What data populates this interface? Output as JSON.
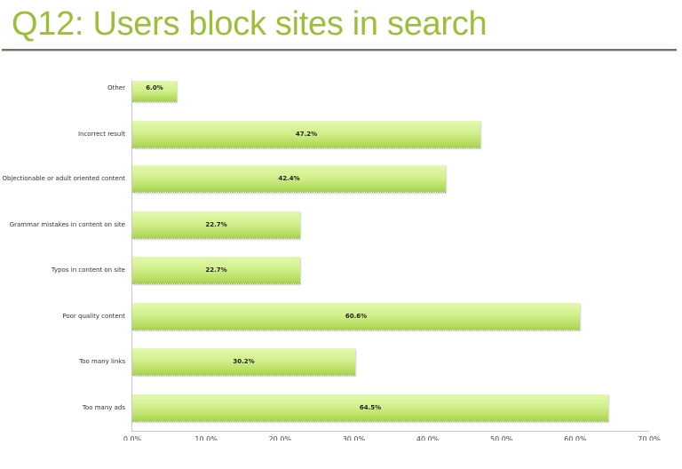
{
  "header": {
    "title": "Q12: Users block sites in search"
  },
  "colors": {
    "title": "#9cbf3a",
    "bar_top": "#e2f9ae",
    "bar_bottom": "#a6cf4c",
    "divider": "#7a7266"
  },
  "chart_data": {
    "type": "bar",
    "orientation": "horizontal",
    "title": "Q12: Users block sites in search",
    "xlabel": "",
    "ylabel": "",
    "categories": [
      "Other",
      "Incorrect result",
      "Objectionable or adult oriented content",
      "Grammar mistakes in content on site",
      "Typos in content on site",
      "Poor quality content",
      "Too many links",
      "Too many ads"
    ],
    "values": [
      6.0,
      47.2,
      42.4,
      22.7,
      22.7,
      60.6,
      30.2,
      64.5
    ],
    "value_labels": [
      "6.0%",
      "47.2%",
      "42.4%",
      "22.7%",
      "22.7%",
      "60.6%",
      "30.2%",
      "64.5%"
    ],
    "xlim": [
      0,
      70
    ],
    "x_ticks": [
      "0.0%",
      "10.0%",
      "20.0%",
      "30.0%",
      "40.0%",
      "50.0%",
      "60.0%",
      "70.0%"
    ],
    "grid": false,
    "legend": "none"
  }
}
